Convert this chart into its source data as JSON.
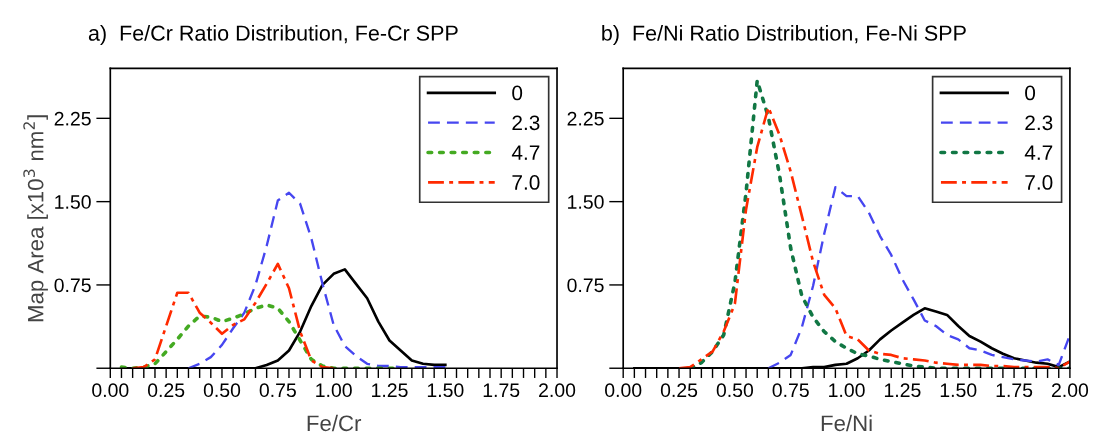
{
  "chart_data": [
    {
      "type": "line",
      "title": "a)  Fe/Cr Ratio Distribution, Fe-Cr SPP",
      "xlabel": "Fe/Cr",
      "ylabel": "Map Area [x10$^{3}$ nm$^{2}$]",
      "legend": "top right",
      "grid": false,
      "x": [
        0.05,
        0.1,
        0.15,
        0.2,
        0.25,
        0.3,
        0.35,
        0.4,
        0.45,
        0.5,
        0.55,
        0.6,
        0.65,
        0.7,
        0.75,
        0.8,
        0.85,
        0.9,
        0.95,
        1.0,
        1.05,
        1.1,
        1.15,
        1.2,
        1.25,
        1.3,
        1.35,
        1.4,
        1.45,
        1.5
      ],
      "xlim": [
        0,
        2
      ],
      "ylim": [
        0,
        2.7
      ],
      "xticks": [
        {
          "value": 0,
          "label": "0.00"
        },
        {
          "value": 0.05,
          "label": null
        },
        {
          "value": 0.1,
          "label": null
        },
        {
          "value": 0.15,
          "label": null
        },
        {
          "value": 0.2,
          "label": null
        },
        {
          "value": 0.25,
          "label": "0.25"
        },
        {
          "value": 0.3,
          "label": null
        },
        {
          "value": 0.35,
          "label": null
        },
        {
          "value": 0.4,
          "label": null
        },
        {
          "value": 0.45,
          "label": null
        },
        {
          "value": 0.5,
          "label": "0.50"
        },
        {
          "value": 0.55,
          "label": null
        },
        {
          "value": 0.6,
          "label": null
        },
        {
          "value": 0.65,
          "label": null
        },
        {
          "value": 0.7,
          "label": null
        },
        {
          "value": 0.75,
          "label": "0.75"
        },
        {
          "value": 0.8,
          "label": null
        },
        {
          "value": 0.85,
          "label": null
        },
        {
          "value": 0.9,
          "label": null
        },
        {
          "value": 0.95,
          "label": null
        },
        {
          "value": 1.0,
          "label": "1.00"
        },
        {
          "value": 1.05,
          "label": null
        },
        {
          "value": 1.1,
          "label": null
        },
        {
          "value": 1.15,
          "label": null
        },
        {
          "value": 1.2,
          "label": null
        },
        {
          "value": 1.25,
          "label": "1.25"
        },
        {
          "value": 1.3,
          "label": null
        },
        {
          "value": 1.35,
          "label": null
        },
        {
          "value": 1.4,
          "label": null
        },
        {
          "value": 1.45,
          "label": null
        },
        {
          "value": 1.5,
          "label": "1.50"
        },
        {
          "value": 1.55,
          "label": null
        },
        {
          "value": 1.6,
          "label": null
        },
        {
          "value": 1.65,
          "label": null
        },
        {
          "value": 1.7,
          "label": null
        },
        {
          "value": 1.75,
          "label": "1.75"
        },
        {
          "value": 1.8,
          "label": null
        },
        {
          "value": 1.85,
          "label": null
        },
        {
          "value": 1.9,
          "label": null
        },
        {
          "value": 1.95,
          "label": null
        },
        {
          "value": 2.0,
          "label": "2.00"
        }
      ],
      "yticks": [
        {
          "value": 0,
          "label": null
        },
        {
          "value": 0.75,
          "label": "0.75"
        },
        {
          "value": 1.5,
          "label": "1.50"
        },
        {
          "value": 2.25,
          "label": "2.25"
        }
      ],
      "series": [
        {
          "name": "0",
          "color": "#000000",
          "line_style": "solid",
          "values": [
            0,
            0,
            0,
            0,
            0,
            0,
            0,
            0,
            0,
            0,
            0,
            0,
            0,
            0.03,
            0.07,
            0.16,
            0.33,
            0.56,
            0.75,
            0.85,
            0.89,
            0.76,
            0.63,
            0.42,
            0.25,
            0.16,
            0.07,
            0.04,
            0.03,
            0.03
          ]
        },
        {
          "name": "2.3",
          "color": "#4646f0",
          "line_style": "dashed",
          "values": [
            null,
            null,
            null,
            null,
            null,
            null,
            0,
            0.04,
            0.1,
            0.21,
            0.36,
            0.5,
            0.75,
            1.1,
            1.51,
            1.58,
            1.48,
            1.17,
            0.76,
            0.39,
            0.2,
            0.11,
            0.04,
            0.02,
            0.02,
            0.01,
            0.01,
            0.01,
            0.01,
            0.01
          ]
        },
        {
          "name": "4.7",
          "color": "#44aa22",
          "line_style": "dotted",
          "values": [
            0.01,
            0,
            0.01,
            0.04,
            0.15,
            0.26,
            0.38,
            0.47,
            0.46,
            0.42,
            0.45,
            0.49,
            0.54,
            0.57,
            0.54,
            0.42,
            0.25,
            0.08,
            0.02,
            0,
            0,
            0,
            0,
            0,
            0,
            0,
            null,
            null,
            null,
            null
          ]
        },
        {
          "name": "7.0",
          "color": "#ff2a00",
          "line_style": "dashdot",
          "values": [
            null,
            0,
            0.01,
            0.08,
            0.38,
            0.68,
            0.68,
            0.5,
            0.41,
            0.31,
            0.39,
            0.44,
            0.59,
            0.76,
            0.94,
            0.72,
            0.33,
            0.07,
            0.01,
            0,
            null,
            null,
            null,
            null,
            null,
            null,
            null,
            null,
            null,
            null
          ]
        }
      ]
    },
    {
      "type": "line",
      "title": "b)  Fe/Ni Ratio Distribution, Fe-Ni SPP",
      "xlabel": "Fe/Ni",
      "legend": "top right",
      "grid": false,
      "x": [
        0.05,
        0.1,
        0.15,
        0.2,
        0.25,
        0.3,
        0.35,
        0.4,
        0.45,
        0.5,
        0.55,
        0.6,
        0.65,
        0.7,
        0.75,
        0.8,
        0.85,
        0.9,
        0.95,
        1.0,
        1.05,
        1.1,
        1.15,
        1.2,
        1.25,
        1.3,
        1.35,
        1.4,
        1.45,
        1.5,
        1.55,
        1.6,
        1.65,
        1.7,
        1.75,
        1.8,
        1.85,
        1.9,
        1.95,
        2.0
      ],
      "xlim": [
        0,
        2
      ],
      "ylim": [
        0,
        2.7
      ],
      "xticks": [
        {
          "value": 0,
          "label": "0.00"
        },
        {
          "value": 0.05,
          "label": null
        },
        {
          "value": 0.1,
          "label": null
        },
        {
          "value": 0.15,
          "label": null
        },
        {
          "value": 0.2,
          "label": null
        },
        {
          "value": 0.25,
          "label": "0.25"
        },
        {
          "value": 0.3,
          "label": null
        },
        {
          "value": 0.35,
          "label": null
        },
        {
          "value": 0.4,
          "label": null
        },
        {
          "value": 0.45,
          "label": null
        },
        {
          "value": 0.5,
          "label": "0.50"
        },
        {
          "value": 0.55,
          "label": null
        },
        {
          "value": 0.6,
          "label": null
        },
        {
          "value": 0.65,
          "label": null
        },
        {
          "value": 0.7,
          "label": null
        },
        {
          "value": 0.75,
          "label": "0.75"
        },
        {
          "value": 0.8,
          "label": null
        },
        {
          "value": 0.85,
          "label": null
        },
        {
          "value": 0.9,
          "label": null
        },
        {
          "value": 0.95,
          "label": null
        },
        {
          "value": 1.0,
          "label": "1.00"
        },
        {
          "value": 1.05,
          "label": null
        },
        {
          "value": 1.1,
          "label": null
        },
        {
          "value": 1.15,
          "label": null
        },
        {
          "value": 1.2,
          "label": null
        },
        {
          "value": 1.25,
          "label": "1.25"
        },
        {
          "value": 1.3,
          "label": null
        },
        {
          "value": 1.35,
          "label": null
        },
        {
          "value": 1.4,
          "label": null
        },
        {
          "value": 1.45,
          "label": null
        },
        {
          "value": 1.5,
          "label": "1.50"
        },
        {
          "value": 1.55,
          "label": null
        },
        {
          "value": 1.6,
          "label": null
        },
        {
          "value": 1.65,
          "label": null
        },
        {
          "value": 1.7,
          "label": null
        },
        {
          "value": 1.75,
          "label": "1.75"
        },
        {
          "value": 1.8,
          "label": null
        },
        {
          "value": 1.85,
          "label": null
        },
        {
          "value": 1.9,
          "label": null
        },
        {
          "value": 1.95,
          "label": null
        },
        {
          "value": 2.0,
          "label": "2.00"
        }
      ],
      "yticks": [
        {
          "value": 0,
          "label": null
        },
        {
          "value": 0.75,
          "label": "0.75"
        },
        {
          "value": 1.5,
          "label": "1.50"
        },
        {
          "value": 2.25,
          "label": "2.25"
        }
      ],
      "series": [
        {
          "name": "0",
          "color": "#000000",
          "line_style": "solid",
          "values": [
            0,
            0,
            0,
            0,
            0,
            0,
            0,
            0,
            0,
            0,
            0,
            0,
            0,
            0,
            0,
            0,
            0.01,
            0.01,
            0.03,
            0.04,
            0.09,
            0.16,
            0.26,
            0.34,
            0.41,
            0.48,
            0.54,
            0.51,
            0.48,
            0.38,
            0.29,
            0.24,
            0.18,
            0.13,
            0.09,
            0.07,
            0.05,
            0.04,
            0.01,
            0.06
          ]
        },
        {
          "name": "2.3",
          "color": "#4646f0",
          "line_style": "dashed",
          "values": [
            null,
            null,
            null,
            null,
            null,
            null,
            null,
            null,
            null,
            null,
            null,
            null,
            0,
            0.05,
            0.12,
            0.37,
            0.74,
            1.21,
            1.63,
            1.55,
            1.55,
            1.4,
            1.19,
            1.02,
            0.8,
            0.62,
            0.43,
            0.38,
            0.3,
            0.26,
            0.18,
            0.16,
            0.12,
            0.1,
            0.08,
            0.07,
            0.06,
            0.08,
            0.03,
            0.3
          ]
        },
        {
          "name": "4.7",
          "color": "#117744",
          "line_style": "dotted",
          "values": [
            null,
            null,
            null,
            null,
            null,
            0,
            0.05,
            0.15,
            0.3,
            0.77,
            1.58,
            2.59,
            2.26,
            1.74,
            1.08,
            0.65,
            0.46,
            0.33,
            0.24,
            0.18,
            0.13,
            0.11,
            0.08,
            0.06,
            0.04,
            0.02,
            0.01,
            0,
            0,
            0,
            0,
            0,
            0,
            0,
            0,
            0,
            0,
            0,
            0,
            0
          ]
        },
        {
          "name": "7.0",
          "color": "#ff2a00",
          "line_style": "dashdot",
          "values": [
            null,
            null,
            null,
            null,
            0,
            0.01,
            0.08,
            0.15,
            0.33,
            0.58,
            1.43,
            1.99,
            2.35,
            2.1,
            1.77,
            1.37,
            0.96,
            0.66,
            0.54,
            0.29,
            0.26,
            0.16,
            0.13,
            0.12,
            0.09,
            0.08,
            0.07,
            0.05,
            0.04,
            0.03,
            0.03,
            0.03,
            0.02,
            0.02,
            0.01,
            0.01,
            0.01,
            0.01,
            0.0,
            0.06
          ]
        }
      ]
    }
  ]
}
